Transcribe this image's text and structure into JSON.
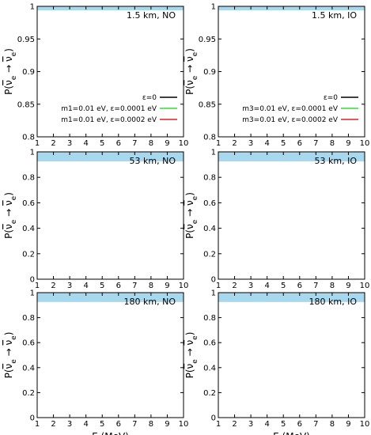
{
  "chart_data": {
    "type": "line",
    "x_range": [
      1,
      10
    ],
    "x_ticks": [
      "1",
      "2",
      "3",
      "4",
      "5",
      "6",
      "7",
      "8",
      "9",
      "10"
    ],
    "xlabel": "E (MeV)",
    "ylabel_prefix": "P(",
    "ylabel_nu": "ν",
    "ylabel_sub": "e",
    "ylabel_arrow": " → ",
    "ylabel_suffix": ")",
    "colors": {
      "band": "#a8d8ee",
      "black": "#000000",
      "green": "#33dd33",
      "red": "#dd2222"
    },
    "legend_labels": {
      "NO": [
        "ε=0",
        "m1=0.01 eV, ε=0.0001 eV",
        "m1=0.01 eV, ε=0.0002 eV"
      ],
      "IO": [
        "ε=0",
        "m3=0.01 eV, ε=0.0001 eV",
        "m3=0.01 eV, ε=0.0002 eV"
      ]
    },
    "panels": [
      {
        "title": "1.5 km, NO",
        "baseline_km": 1.5,
        "ordering": "NO",
        "ylim": [
          0.8,
          1.0
        ],
        "yticks": [
          "0.8",
          "0.85",
          "0.9",
          "0.95",
          "1"
        ],
        "epsilon": [
          0,
          0.0001,
          0.0002
        ],
        "legend": true
      },
      {
        "title": "1.5 km, IO",
        "baseline_km": 1.5,
        "ordering": "IO",
        "ylim": [
          0.8,
          1.0
        ],
        "yticks": [
          "0.8",
          "0.85",
          "0.9",
          "0.95",
          "1"
        ],
        "epsilon": [
          0,
          0.0001,
          0.0002
        ],
        "legend": true
      },
      {
        "title": "53 km, NO",
        "baseline_km": 53,
        "ordering": "NO",
        "ylim": [
          0,
          1
        ],
        "yticks": [
          "0",
          "0.2",
          "0.4",
          "0.6",
          "0.8",
          "1"
        ],
        "epsilon": [
          0,
          0.0001,
          0.0002
        ],
        "legend": false
      },
      {
        "title": "53 km, IO",
        "baseline_km": 53,
        "ordering": "IO",
        "ylim": [
          0,
          1
        ],
        "yticks": [
          "0",
          "0.2",
          "0.4",
          "0.6",
          "0.8",
          "1"
        ],
        "epsilon": [
          0,
          0.0001,
          0.0002
        ],
        "legend": false
      },
      {
        "title": "180 km, NO",
        "baseline_km": 180,
        "ordering": "NO",
        "ylim": [
          0,
          1
        ],
        "yticks": [
          "0",
          "0.2",
          "0.4",
          "0.6",
          "0.8",
          "1"
        ],
        "epsilon": [
          0,
          0.0001,
          0.0002
        ],
        "legend": false
      },
      {
        "title": "180 km, IO",
        "baseline_km": 180,
        "ordering": "IO",
        "ylim": [
          0,
          1
        ],
        "yticks": [
          "0",
          "0.2",
          "0.4",
          "0.6",
          "0.8",
          "1"
        ],
        "epsilon": [
          0,
          0.0001,
          0.0002
        ],
        "legend": false
      }
    ]
  }
}
